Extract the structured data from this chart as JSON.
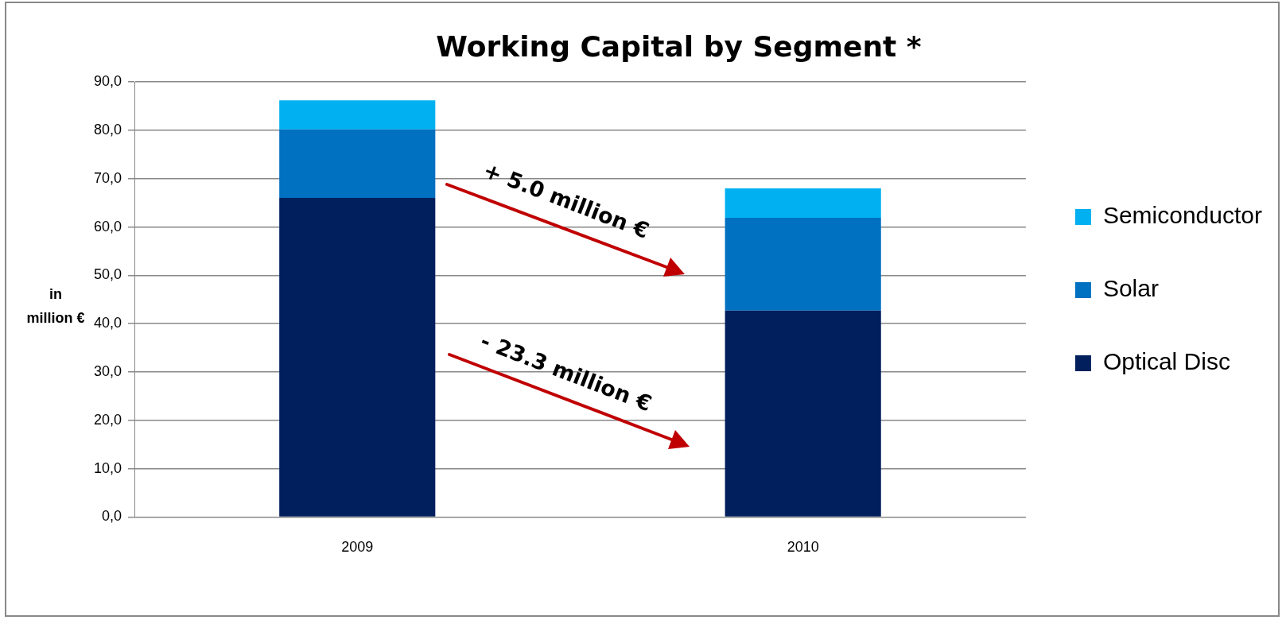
{
  "chart_data": {
    "type": "bar",
    "title": "Working Capital by Segment *",
    "ylabel": "in\nmillion €",
    "categories": [
      "2009",
      "2010"
    ],
    "stacked": true,
    "series": [
      {
        "name": "Optical Disc",
        "color": "#001f5c",
        "values": [
          66.0,
          42.7
        ]
      },
      {
        "name": "Solar",
        "color": "#0070c0",
        "values": [
          14.2,
          19.2
        ]
      },
      {
        "name": "Semiconductor",
        "color": "#00b0f0",
        "values": [
          6.0,
          6.1
        ]
      }
    ],
    "ylim": [
      0,
      90
    ],
    "yticks": [
      {
        "value": 0,
        "label": "0,0"
      },
      {
        "value": 10,
        "label": "10,0"
      },
      {
        "value": 20,
        "label": "20,0"
      },
      {
        "value": 30,
        "label": "30,0"
      },
      {
        "value": 40,
        "label": "40,0"
      },
      {
        "value": 50,
        "label": "50,0"
      },
      {
        "value": 60,
        "label": "60,0"
      },
      {
        "value": 70,
        "label": "70,0"
      },
      {
        "value": 80,
        "label": "80,0"
      },
      {
        "value": 90,
        "label": "90,0"
      }
    ],
    "grid": "y",
    "legend": "right",
    "annotations": [
      "+ 5.0 million €",
      "- 23.3 million €"
    ]
  }
}
